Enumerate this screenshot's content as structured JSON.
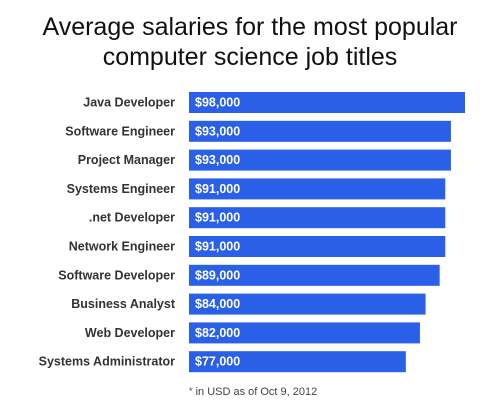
{
  "chart_data": {
    "type": "bar",
    "orientation": "horizontal",
    "title_lines": [
      "Average salaries for the most popular",
      "computer science job titles"
    ],
    "categories": [
      "Java Developer",
      "Software Engineer",
      "Project Manager",
      "Systems Engineer",
      ".net Developer",
      "Network Engineer",
      "Software Developer",
      "Business Analyst",
      "Web Developer",
      "Systems Administrator"
    ],
    "values": [
      98000,
      93000,
      93000,
      91000,
      91000,
      91000,
      89000,
      84000,
      82000,
      77000
    ],
    "data_labels": [
      "$98,000",
      "$93,000",
      "$93,000",
      "$91,000",
      "$91,000",
      "$91,000",
      "$89,000",
      "$84,000",
      "$82,000",
      "$77,000"
    ],
    "xlim": [
      0,
      98000
    ],
    "bar_color": "#2a5fe8",
    "label_color": "#ffffff",
    "grid": false,
    "legend": "none"
  },
  "footnote": {
    "mark": "*",
    "text": "in USD as of Oct 9, 2012"
  }
}
